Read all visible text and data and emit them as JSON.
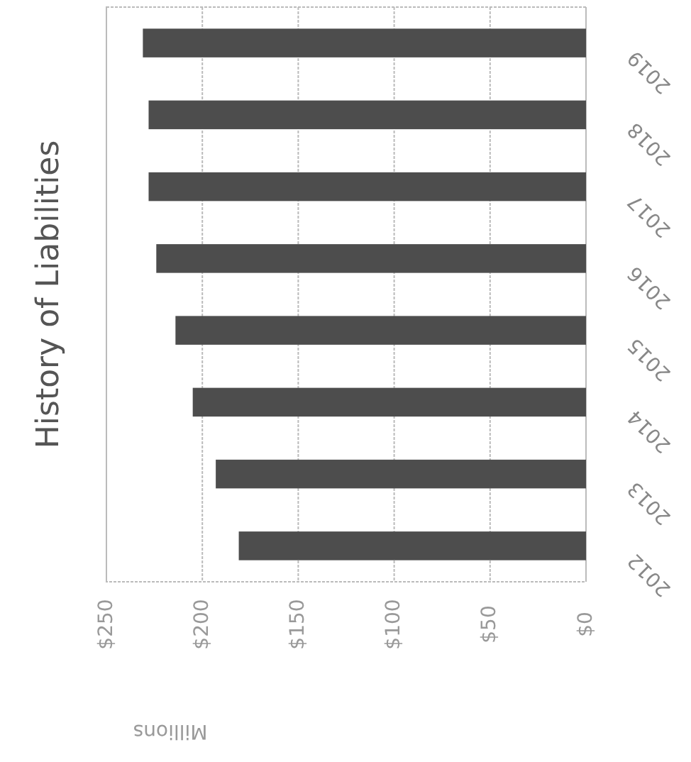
{
  "chart_data": {
    "type": "bar",
    "orientation": "horizontal",
    "title": "History of Liabilities",
    "xlabel": "Millions",
    "categories": [
      "2019",
      "2018",
      "2017",
      "2016",
      "2015",
      "2014",
      "2013",
      "2012"
    ],
    "values": [
      231,
      228,
      228,
      224,
      214,
      205,
      193,
      181
    ],
    "color": "#4d4d4d",
    "xlim": [
      250,
      0
    ],
    "xticks": [
      {
        "value": 250,
        "label": "$250"
      },
      {
        "value": 200,
        "label": "$200"
      },
      {
        "value": 150,
        "label": "$150"
      },
      {
        "value": 100,
        "label": "$100"
      },
      {
        "value": 50,
        "label": "$50"
      },
      {
        "value": 0,
        "label": "$0"
      }
    ],
    "grid": "x"
  }
}
